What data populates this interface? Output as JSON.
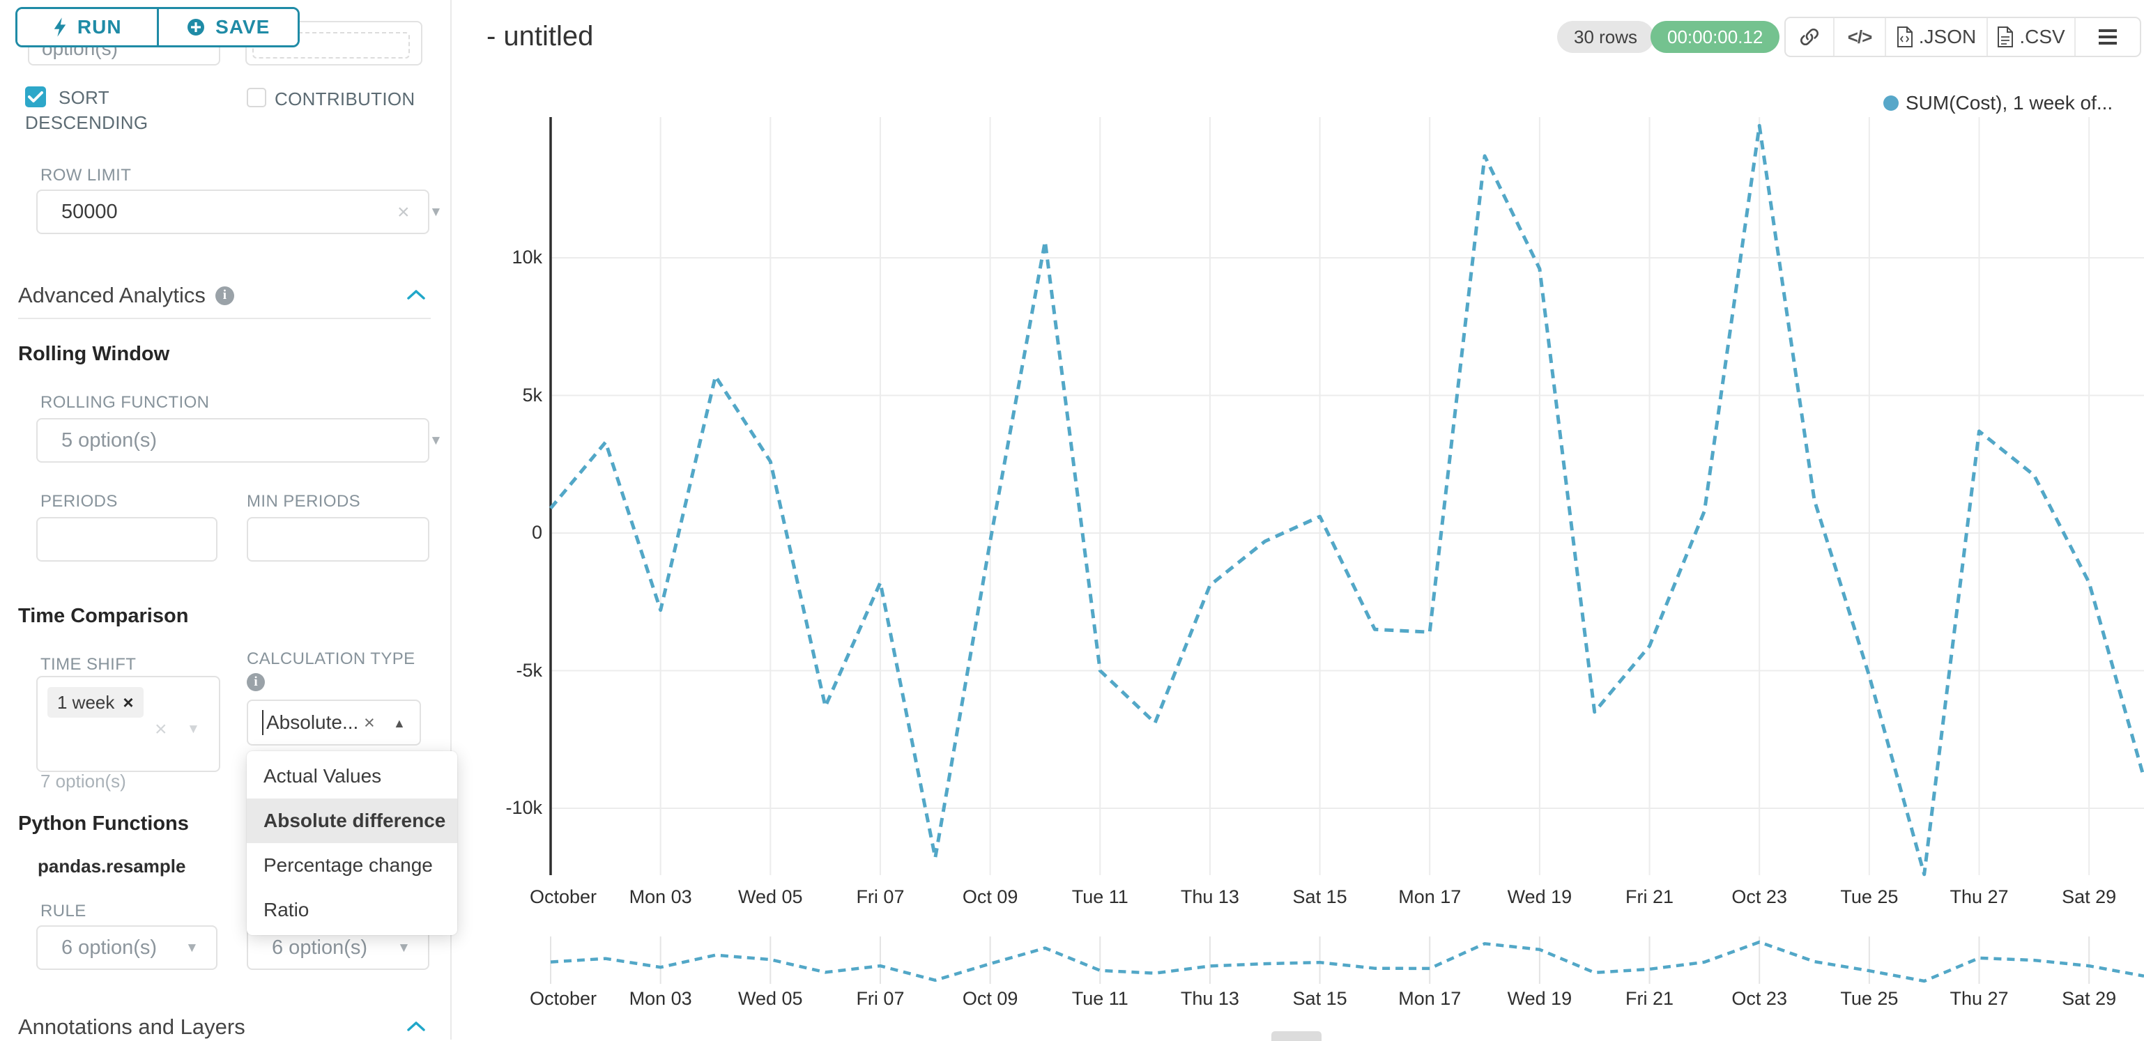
{
  "colors": {
    "primary": "#1f8ba6",
    "accent": "#20a7c9",
    "series_line": "#52a7c7",
    "timer_green": "#74c28f",
    "badge_gray": "#e6e6e6",
    "highlight_row": "#e9e9e9"
  },
  "sidebar": {
    "run_button": "RUN",
    "save_button": "SAVE",
    "clipped_row": {
      "left_text": "option(s)"
    },
    "sort_descending": {
      "label": "SORT DESCENDING",
      "checked": true
    },
    "contribution": {
      "label": "CONTRIBUTION",
      "checked": false
    },
    "row_limit": {
      "label": "ROW LIMIT",
      "value": "50000"
    },
    "advanced_analytics_title": "Advanced Analytics",
    "rolling_window": {
      "title": "Rolling Window",
      "rolling_function": {
        "label": "ROLLING FUNCTION",
        "placeholder": "5 option(s)"
      },
      "periods_label": "PERIODS",
      "min_periods_label": "MIN PERIODS"
    },
    "time_comparison": {
      "title": "Time Comparison",
      "time_shift": {
        "label": "TIME SHIFT",
        "chip": "1 week",
        "helper": "7 option(s)"
      },
      "calculation_type": {
        "label": "CALCULATION TYPE",
        "value": "Absolute...",
        "options": [
          "Actual Values",
          "Absolute difference",
          "Percentage change",
          "Ratio"
        ],
        "selected": "Absolute difference"
      }
    },
    "python_functions": {
      "title": "Python Functions",
      "subtitle": "pandas.resample",
      "rule_label": "RULE",
      "rule_placeholder": "6 option(s)",
      "rule2_placeholder": "6 option(s)"
    },
    "annotations_title": "Annotations and Layers"
  },
  "header": {
    "title": "- untitled",
    "rows_badge": "30 rows",
    "timer": "00:00:00.12",
    "export_json": ".JSON",
    "export_csv": ".CSV"
  },
  "chart_data": {
    "type": "line",
    "title": "",
    "xlabel": "",
    "ylabel": "",
    "grid": true,
    "legend": [
      "SUM(Cost), 1 week of..."
    ],
    "legend_position": "top-right",
    "x": [
      "Oct 01",
      "Oct 02",
      "Oct 03",
      "Oct 04",
      "Oct 05",
      "Oct 06",
      "Oct 07",
      "Oct 08",
      "Oct 09",
      "Oct 10",
      "Oct 11",
      "Oct 12",
      "Oct 13",
      "Oct 14",
      "Oct 15",
      "Oct 16",
      "Oct 17",
      "Oct 18",
      "Oct 19",
      "Oct 20",
      "Oct 21",
      "Oct 22",
      "Oct 23",
      "Oct 24",
      "Oct 25",
      "Oct 26",
      "Oct 27",
      "Oct 28",
      "Oct 29",
      "Oct 30"
    ],
    "x_tick_labels": [
      "October",
      "Mon 03",
      "Wed 05",
      "Fri 07",
      "Oct 09",
      "Tue 11",
      "Thu 13",
      "Sat 15",
      "Mon 17",
      "Wed 19",
      "Fri 21",
      "Oct 23",
      "Tue 25",
      "Thu 27",
      "Sat 29"
    ],
    "y_tick_labels": [
      "10k",
      "5k",
      "0",
      "-5k",
      "-10k"
    ],
    "y_tick_values": [
      10000,
      5000,
      0,
      -5000,
      -10000
    ],
    "ylim": [
      -12500,
      15100
    ],
    "series": [
      {
        "name": "SUM(Cost), 1 week of...",
        "dashed": true,
        "color": "#52a7c7",
        "values": [
          900,
          3300,
          -2800,
          5700,
          2600,
          -6300,
          -1800,
          -11800,
          -300,
          10600,
          -5000,
          -6900,
          -1900,
          -300,
          600,
          -3500,
          -3600,
          13700,
          9600,
          -6500,
          -4100,
          800,
          14800,
          1200,
          -5200,
          -12400,
          3700,
          2100,
          -1800,
          -8900
        ]
      }
    ]
  }
}
